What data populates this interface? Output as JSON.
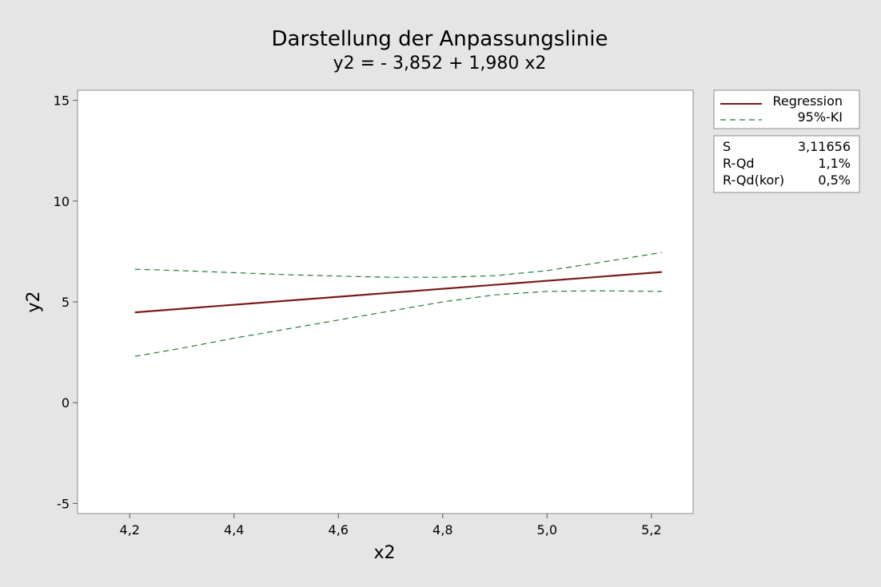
{
  "chart_data": {
    "type": "line",
    "title": "Darstellung der Anpassungslinie",
    "subtitle": "y2 = - 3,852 + 1,980 x2",
    "xlabel": "x2",
    "ylabel": "y2",
    "xlim": [
      4.1,
      5.28
    ],
    "ylim": [
      -5.5,
      15.5
    ],
    "xticks": [
      4.2,
      4.4,
      4.6,
      4.8,
      5.0,
      5.2
    ],
    "xtick_labels": [
      "4,2",
      "4,4",
      "4,6",
      "4,8",
      "5,0",
      "5,2"
    ],
    "yticks": [
      -5,
      0,
      5,
      10,
      15
    ],
    "ytick_labels": [
      "-5",
      "0",
      "5",
      "10",
      "15"
    ],
    "grid": false,
    "legend_placement": "right",
    "series": [
      {
        "name": "Regression",
        "color": "#7b1a1a",
        "style": "solid",
        "x": [
          4.21,
          5.22
        ],
        "y": [
          4.48,
          6.48
        ]
      },
      {
        "name": "95%-KI",
        "part": "upper",
        "color": "#1e7a3a",
        "style": "dashed",
        "x": [
          4.21,
          4.3,
          4.4,
          4.5,
          4.6,
          4.7,
          4.8,
          4.9,
          5.0,
          5.1,
          5.22
        ],
        "y": [
          6.62,
          6.55,
          6.45,
          6.35,
          6.28,
          6.22,
          6.22,
          6.3,
          6.55,
          6.95,
          7.45
        ]
      },
      {
        "name": "95%-KI",
        "part": "lower",
        "color": "#1e7a3a",
        "style": "dashed",
        "x": [
          4.21,
          4.3,
          4.4,
          4.5,
          4.6,
          4.7,
          4.8,
          4.9,
          5.0,
          5.1,
          5.22
        ],
        "y": [
          2.3,
          2.7,
          3.2,
          3.65,
          4.1,
          4.55,
          5.0,
          5.35,
          5.52,
          5.55,
          5.52
        ]
      }
    ],
    "legend": {
      "entries": [
        {
          "label": "Regression",
          "color": "#7b1a1a",
          "style": "solid"
        },
        {
          "label": "95%-KI",
          "color": "#1e7a3a",
          "style": "dashed"
        }
      ]
    },
    "stats": [
      {
        "label": "S",
        "value": "3,11656"
      },
      {
        "label": "R-Qd",
        "value": "1,1%"
      },
      {
        "label": "R-Qd(kor)",
        "value": "0,5%"
      }
    ]
  }
}
